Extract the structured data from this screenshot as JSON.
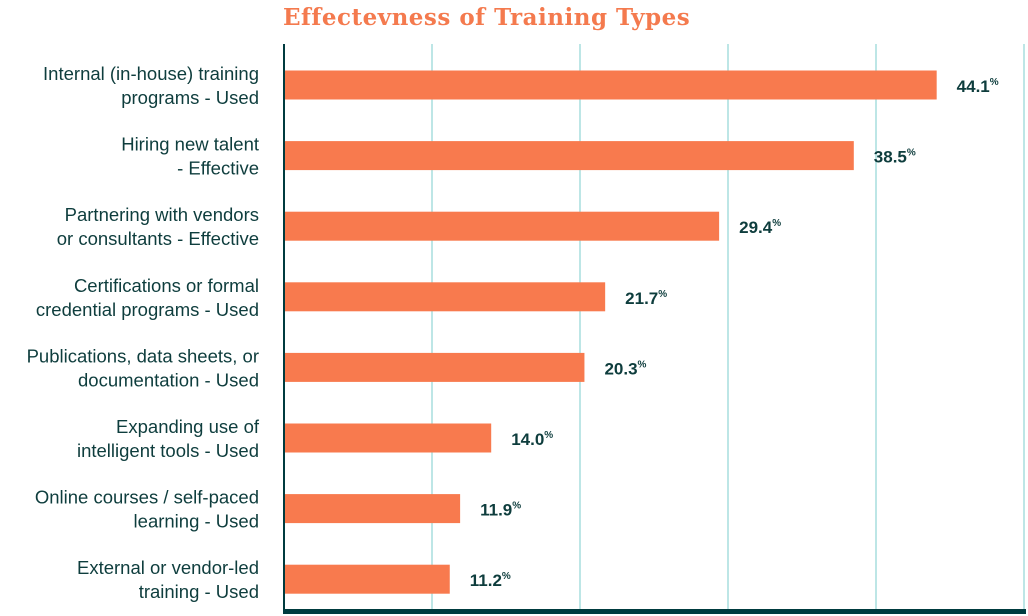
{
  "chart_data": {
    "type": "bar",
    "orientation": "horizontal",
    "title": "Effectevness of Training Types",
    "xlabel": "",
    "ylabel": "",
    "xlim": [
      0,
      50
    ],
    "grid": true,
    "value_suffix": "%",
    "categories": [
      [
        "Internal (in-house) training",
        "programs - Used"
      ],
      [
        "Hiring new talent",
        "- Effective"
      ],
      [
        "Partnering with vendors",
        "or consultants - Effective"
      ],
      [
        "Certifications or formal",
        "credential programs - Used"
      ],
      [
        "Publications, data sheets, or",
        "documentation - Used"
      ],
      [
        "Expanding use of",
        "intelligent tools - Used"
      ],
      [
        "Online courses / self-paced",
        "learning - Used"
      ],
      [
        "External or vendor-led",
        "training - Used"
      ]
    ],
    "values": [
      44.1,
      38.5,
      29.4,
      21.7,
      20.3,
      14.0,
      11.9,
      11.2
    ],
    "colors": {
      "bar": "#F87A4E",
      "title": "#F47A4E",
      "text": "#0E3D3D",
      "grid": "#BDE6E6",
      "axis": "#003B3F"
    }
  }
}
